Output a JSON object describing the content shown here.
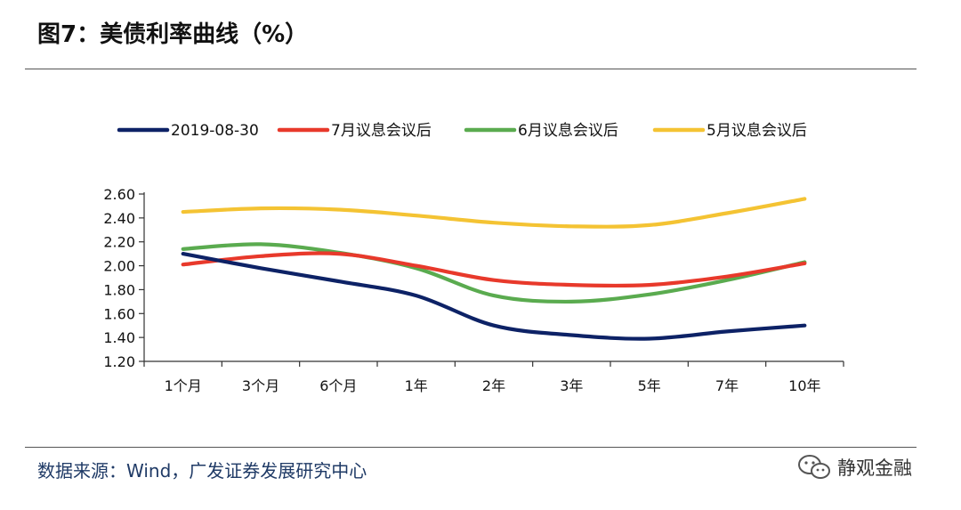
{
  "figure": {
    "title": "图7：美债利率曲线（%）",
    "source": "数据来源：Wind，广发证券发展研究中心",
    "watermark": "静观金融"
  },
  "chart_data": {
    "type": "line",
    "title": "图7：美债利率曲线（%）",
    "xlabel": "",
    "ylabel": "",
    "categories": [
      "1个月",
      "3个月",
      "6个月",
      "1年",
      "2年",
      "3年",
      "5年",
      "7年",
      "10年"
    ],
    "ylim": [
      1.2,
      2.6
    ],
    "yticks": [
      "1.20",
      "1.40",
      "1.60",
      "1.80",
      "2.00",
      "2.20",
      "2.40",
      "2.60"
    ],
    "grid": false,
    "legend_position": "top",
    "series": [
      {
        "name": "2019-08-30",
        "color": "#0d2266",
        "values": [
          2.1,
          1.98,
          1.87,
          1.75,
          1.5,
          1.42,
          1.39,
          1.45,
          1.5
        ]
      },
      {
        "name": "7月议息会议后",
        "color": "#e8392b",
        "values": [
          2.01,
          2.08,
          2.1,
          2.0,
          1.88,
          1.84,
          1.84,
          1.91,
          2.02
        ]
      },
      {
        "name": "6月议息会议后",
        "color": "#5aab4f",
        "values": [
          2.14,
          2.18,
          2.11,
          1.98,
          1.75,
          1.7,
          1.76,
          1.88,
          2.03
        ]
      },
      {
        "name": "5月议息会议后",
        "color": "#f4c333",
        "values": [
          2.45,
          2.48,
          2.47,
          2.42,
          2.36,
          2.33,
          2.34,
          2.44,
          2.56
        ]
      }
    ]
  }
}
